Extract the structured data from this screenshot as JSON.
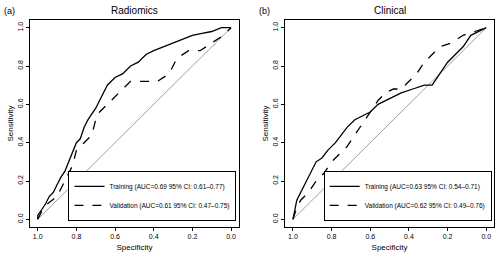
{
  "chart_data": [
    {
      "type": "line",
      "label": "(a)",
      "title": "Radiomics",
      "x_label": "Specificity",
      "y_label": "Sensitivity",
      "xlim": [
        1.04,
        -0.04
      ],
      "ylim": [
        -0.04,
        1.04
      ],
      "xticks": [
        {
          "value": 1,
          "label": "1.0"
        },
        0.8,
        0.6,
        0.4,
        0.2,
        {
          "value": 0,
          "label": "0.0"
        }
      ],
      "yticks": [
        {
          "value": 0,
          "label": "0.0"
        },
        0.2,
        0.4,
        0.6,
        0.8,
        {
          "value": 1,
          "label": "1.0"
        }
      ],
      "grid": false,
      "legend": "bottom right",
      "reference_line": {
        "x": [
          1.0,
          0.0
        ],
        "y": [
          0.0,
          1.0
        ],
        "color": "#a0a0a0"
      },
      "series": [
        {
          "name": "Training (AUC=0.69 95% CI: 0.61–0.77)",
          "color": "#000000",
          "line_style": "solid",
          "x": [
            1.0,
            1.0,
            0.98,
            0.96,
            0.94,
            0.92,
            0.9,
            0.88,
            0.86,
            0.84,
            0.82,
            0.8,
            0.78,
            0.76,
            0.74,
            0.72,
            0.7,
            0.68,
            0.66,
            0.64,
            0.62,
            0.6,
            0.56,
            0.52,
            0.48,
            0.44,
            0.4,
            0.35,
            0.3,
            0.25,
            0.2,
            0.15,
            0.1,
            0.05,
            0.0
          ],
          "values": [
            0.0,
            0.02,
            0.05,
            0.08,
            0.12,
            0.14,
            0.18,
            0.22,
            0.25,
            0.3,
            0.35,
            0.4,
            0.42,
            0.48,
            0.52,
            0.55,
            0.58,
            0.62,
            0.66,
            0.7,
            0.72,
            0.74,
            0.76,
            0.8,
            0.82,
            0.86,
            0.88,
            0.9,
            0.92,
            0.94,
            0.96,
            0.97,
            0.98,
            1.0,
            1.0
          ]
        },
        {
          "name": "Validation (AUC=0.61 95% CI: 0.47–0.75)",
          "color": "#000000",
          "line_style": "dash",
          "x": [
            1.0,
            0.98,
            0.95,
            0.9,
            0.86,
            0.82,
            0.8,
            0.76,
            0.72,
            0.7,
            0.68,
            0.64,
            0.6,
            0.56,
            0.52,
            0.45,
            0.38,
            0.32,
            0.28,
            0.22,
            0.16,
            0.1,
            0.04,
            0.0
          ],
          "values": [
            0.0,
            0.04,
            0.08,
            0.12,
            0.2,
            0.28,
            0.36,
            0.4,
            0.44,
            0.52,
            0.56,
            0.6,
            0.64,
            0.68,
            0.72,
            0.72,
            0.72,
            0.76,
            0.84,
            0.88,
            0.88,
            0.92,
            0.96,
            1.0
          ]
        }
      ]
    },
    {
      "type": "line",
      "label": "(b)",
      "title": "Clinical",
      "x_label": "Specificity",
      "y_label": "Sensitivity",
      "xlim": [
        1.04,
        -0.04
      ],
      "ylim": [
        -0.04,
        1.04
      ],
      "xticks": [
        {
          "value": 1,
          "label": "1.0"
        },
        0.8,
        0.6,
        0.4,
        0.2,
        {
          "value": 0,
          "label": "0.0"
        }
      ],
      "yticks": [
        {
          "value": 0,
          "label": "0.0"
        },
        0.2,
        0.4,
        0.6,
        0.8,
        {
          "value": 1,
          "label": "1.0"
        }
      ],
      "grid": false,
      "legend": "bottom right",
      "reference_line": {
        "x": [
          1.0,
          0.0
        ],
        "y": [
          0.0,
          1.0
        ],
        "color": "#a0a0a0"
      },
      "series": [
        {
          "name": "Training (AUC=0.63 95% CI: 0.54–0.71)",
          "color": "#000000",
          "line_style": "solid",
          "x": [
            1.0,
            0.99,
            0.98,
            0.96,
            0.94,
            0.92,
            0.9,
            0.88,
            0.85,
            0.82,
            0.78,
            0.75,
            0.72,
            0.68,
            0.64,
            0.6,
            0.56,
            0.52,
            0.48,
            0.44,
            0.38,
            0.32,
            0.28,
            0.24,
            0.2,
            0.16,
            0.12,
            0.08,
            0.04,
            0.0
          ],
          "values": [
            0.0,
            0.05,
            0.1,
            0.14,
            0.18,
            0.22,
            0.26,
            0.3,
            0.32,
            0.36,
            0.4,
            0.44,
            0.48,
            0.52,
            0.54,
            0.56,
            0.6,
            0.62,
            0.64,
            0.66,
            0.68,
            0.7,
            0.7,
            0.76,
            0.82,
            0.86,
            0.9,
            0.96,
            0.98,
            1.0
          ]
        },
        {
          "name": "Validation (AUC=0.62 95% CI: 0.49–0.76)",
          "color": "#000000",
          "line_style": "dash",
          "x": [
            1.0,
            0.98,
            0.96,
            0.92,
            0.88,
            0.84,
            0.8,
            0.76,
            0.72,
            0.68,
            0.64,
            0.6,
            0.56,
            0.52,
            0.48,
            0.44,
            0.4,
            0.36,
            0.32,
            0.28,
            0.24,
            0.18,
            0.12,
            0.06,
            0.0
          ],
          "values": [
            0.0,
            0.06,
            0.1,
            0.14,
            0.2,
            0.24,
            0.3,
            0.34,
            0.38,
            0.44,
            0.5,
            0.56,
            0.62,
            0.66,
            0.68,
            0.68,
            0.72,
            0.76,
            0.82,
            0.86,
            0.9,
            0.92,
            0.96,
            0.98,
            1.0
          ]
        }
      ]
    }
  ]
}
